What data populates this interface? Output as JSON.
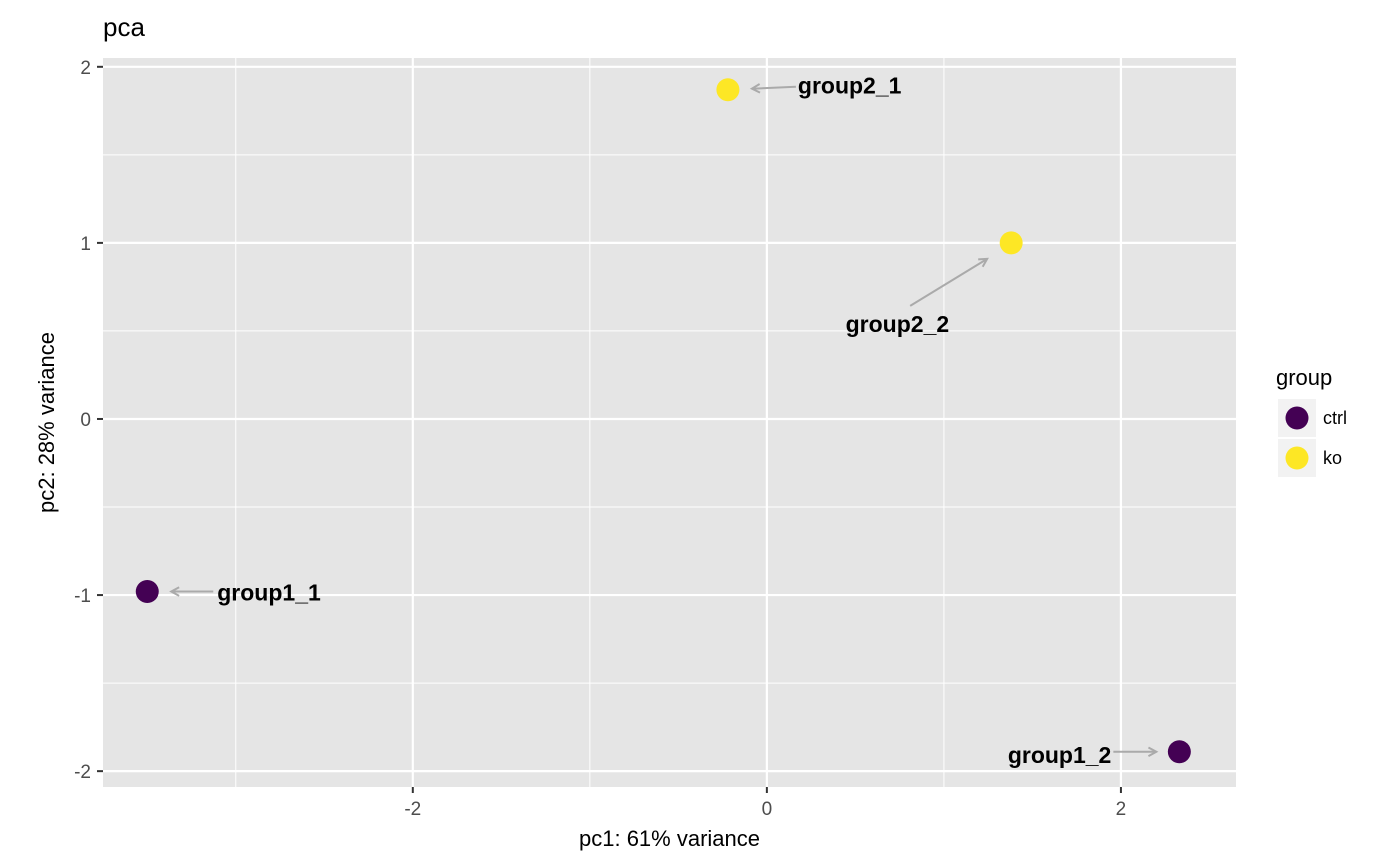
{
  "chart_data": {
    "type": "scatter",
    "title": "pca",
    "xlabel": "pc1: 61% variance",
    "ylabel": "pc2: 28% variance",
    "xlim": [
      -3.75,
      2.65
    ],
    "ylim": [
      -2.09,
      2.05
    ],
    "x_ticks": [
      -2,
      0,
      2
    ],
    "x_tick_labels": [
      "-2",
      "0",
      "2"
    ],
    "y_ticks": [
      -2,
      -1,
      0,
      1,
      2
    ],
    "y_tick_labels": [
      "-2",
      "-1",
      "0",
      "1",
      "2"
    ],
    "grid": true,
    "legend": {
      "title": "group",
      "position": "right",
      "entries": [
        {
          "label": "ctrl",
          "color": "#440154"
        },
        {
          "label": "ko",
          "color": "#FDE725"
        }
      ]
    },
    "series": [
      {
        "name": "ctrl",
        "color": "#440154",
        "points": [
          {
            "label": "group1_1",
            "x": -3.5,
            "y": -0.98
          },
          {
            "label": "group1_2",
            "x": 2.33,
            "y": -1.89
          }
        ]
      },
      {
        "name": "ko",
        "color": "#FDE725",
        "points": [
          {
            "label": "group2_1",
            "x": -0.22,
            "y": 1.87
          },
          {
            "label": "group2_2",
            "x": 1.38,
            "y": 1.0
          }
        ]
      }
    ],
    "colors": {
      "panel_background": "#E5E5E5",
      "grid": "#FFFFFF",
      "label_arrow": "#AAAAAA"
    }
  }
}
